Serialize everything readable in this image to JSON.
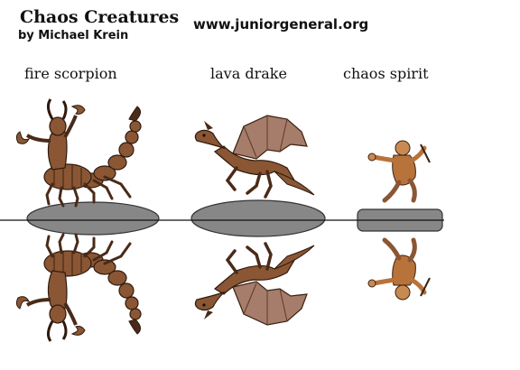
{
  "header": {
    "title": "Chaos Creatures",
    "author": "by Michael Krein",
    "website": "www.juniorgeneral.org"
  },
  "creatures": [
    {
      "label": "fire scorpion",
      "icon": "scorpion-figure"
    },
    {
      "label": "lava drake",
      "icon": "dragon-figure"
    },
    {
      "label": "chaos spirit",
      "icon": "spirit-figure"
    }
  ],
  "colors": {
    "base": "#878787",
    "creature_brown": "#8a5634",
    "creature_dark": "#4a2a18",
    "wing": "#a67c6a",
    "spirit": "#b8733a"
  }
}
